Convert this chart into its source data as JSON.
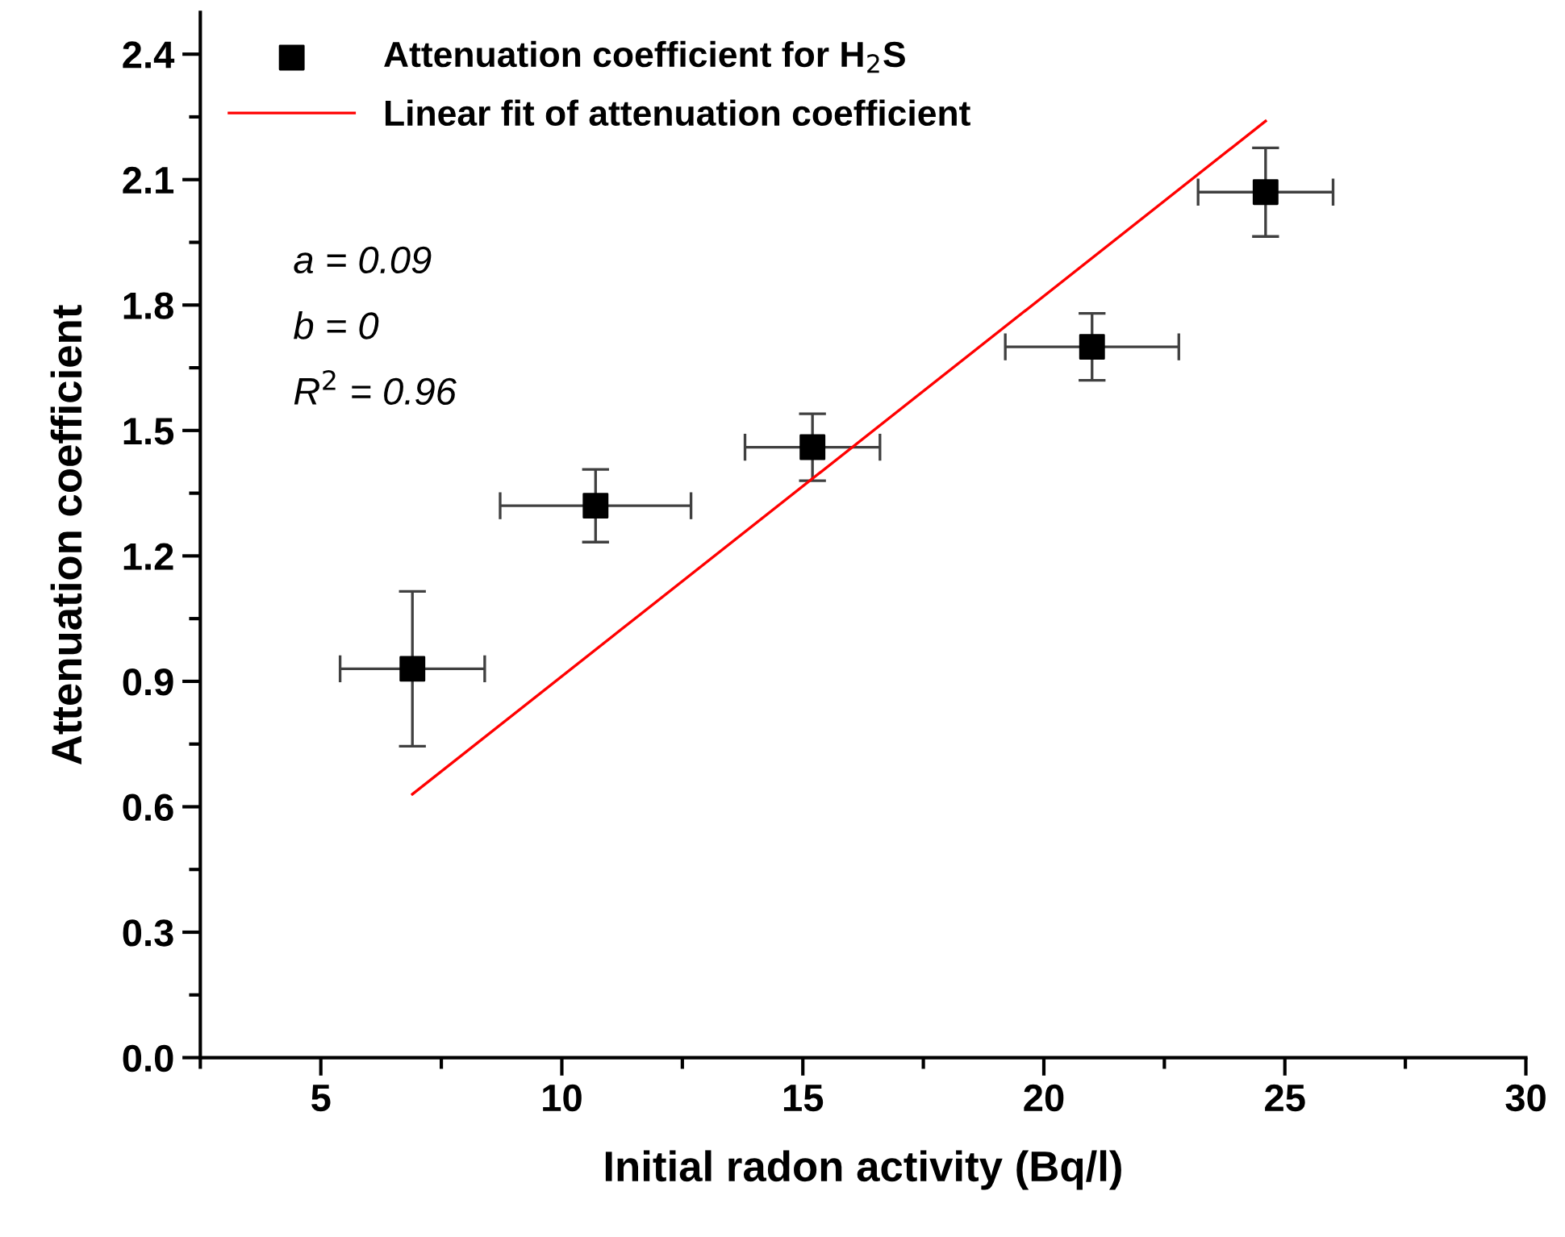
{
  "chart_data": {
    "type": "scatter",
    "xlabel": "Initial radon activity (Bq/l)",
    "ylabel": "Attenuation coefficient",
    "xlim": [
      2.5,
      30
    ],
    "xticks": [
      5,
      10,
      15,
      20,
      25,
      30
    ],
    "ylim": [
      0,
      2.5
    ],
    "yticks": [
      {
        "value": 0,
        "label": "0.0"
      },
      0.3,
      0.6,
      0.9,
      1.2,
      1.5,
      1.8,
      2.1,
      2.4
    ],
    "grid": false,
    "legend": "top left",
    "marker": "square",
    "series": [
      {
        "name": "Attenuation coefficient for H$_{2}$S",
        "color": "#000000",
        "x": [
          6.9,
          10.7,
          15.2,
          21.0,
          24.6
        ],
        "values": [
          0.93,
          1.32,
          1.46,
          1.7,
          2.07
        ],
        "errors": [
          0.185,
          0.087,
          0.08,
          0.08,
          0.106
        ],
        "xerrors": [
          1.5,
          1.98,
          1.4,
          1.8,
          1.4
        ]
      },
      {
        "name": "Linear fit of attenuation coefficient",
        "type": "line",
        "color": "#ff0000",
        "marker": "none",
        "line_style": "solid",
        "x": [
          6.9,
          24.6
        ],
        "values": [
          0.63,
          2.24
        ]
      }
    ],
    "annotations": [
      "a = 0.09",
      "b = 0",
      "R$^{2}$ = 0.96"
    ]
  }
}
